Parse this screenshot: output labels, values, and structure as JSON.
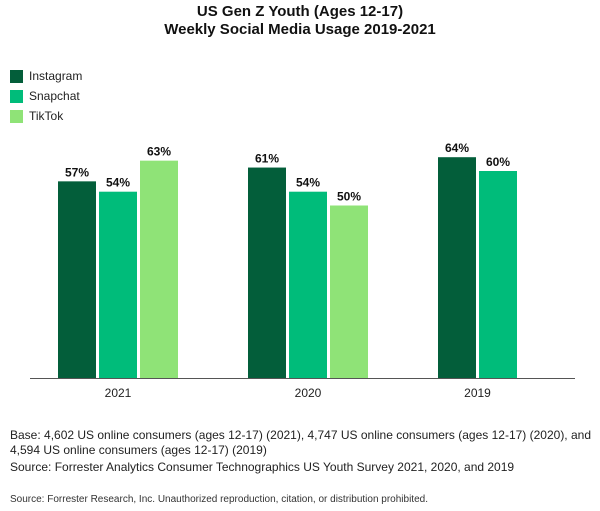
{
  "title_line_1": "US Gen Z Youth (Ages 12-17)",
  "title_line_2": "Weekly Social Media Usage 2019-2021",
  "legend": [
    {
      "label": "Instagram",
      "color": "#035e3a"
    },
    {
      "label": "Snapchat",
      "color": "#00bc7a"
    },
    {
      "label": "TikTok",
      "color": "#8fe377"
    }
  ],
  "notes": {
    "base": "Base: 4,602 US online consumers (ages 12-17) (2021), 4,747 US online consumers (ages 12-17) (2020), and 4,594 US online consumers (ages 12-17) (2019)",
    "source": "Source: Forrester Analytics Consumer Technographics US Youth Survey 2021, 2020, and 2019",
    "copyright": "Source: Forrester Research, Inc. Unauthorized reproduction, citation, or distribution prohibited."
  },
  "chart_data": {
    "type": "bar",
    "title": "US Gen Z Youth (Ages 12-17) Weekly Social Media Usage 2019-2021",
    "categories": [
      "2021",
      "2020",
      "2019"
    ],
    "series": [
      {
        "name": "Instagram",
        "color": "#035e3a",
        "values": [
          57,
          61,
          64
        ],
        "labels": [
          "57%",
          "61%",
          "64%"
        ]
      },
      {
        "name": "Snapchat",
        "color": "#00bc7a",
        "values": [
          54,
          54,
          60
        ],
        "labels": [
          "54%",
          "54%",
          "60%"
        ]
      },
      {
        "name": "TikTok",
        "color": "#8fe377",
        "values": [
          63,
          50,
          null
        ],
        "labels": [
          "63%",
          "50%",
          null
        ]
      }
    ],
    "value_unit": "%",
    "ylim": [
      0,
      100
    ],
    "grid": false,
    "legend_position": "top-left"
  }
}
